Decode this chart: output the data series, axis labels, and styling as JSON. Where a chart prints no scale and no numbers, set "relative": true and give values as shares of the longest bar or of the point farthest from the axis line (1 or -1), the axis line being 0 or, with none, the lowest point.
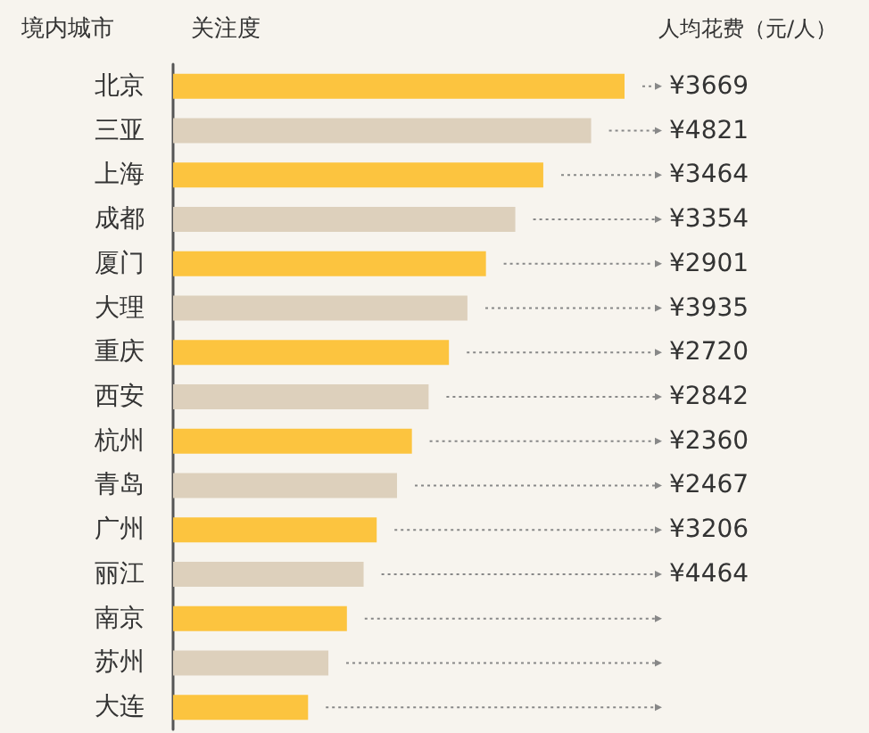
{
  "chart_data": {
    "type": "bar",
    "orientation": "horizontal",
    "relative": true,
    "ylabel": "境内城市",
    "xlabel": "关注度",
    "categories": [
      "北京",
      "三亚",
      "上海",
      "成都",
      "厦门",
      "大理",
      "重庆",
      "西安",
      "杭州",
      "青岛",
      "广州",
      "丽江",
      "南京",
      "苏州",
      "大连"
    ],
    "values": [
      1,
      0.926,
      0.82,
      0.758,
      0.693,
      0.652,
      0.611,
      0.566,
      0.529,
      0.496,
      0.451,
      0.422,
      0.385,
      0.344,
      0.299
    ],
    "colors": [
      "#fcc43f",
      "#ddd0bc",
      "#fcc43f",
      "#ddd0bc",
      "#fcc43f",
      "#ddd0bc",
      "#fcc43f",
      "#ddd0bc",
      "#fcc43f",
      "#ddd0bc",
      "#fcc43f",
      "#ddd0bc",
      "#fcc43f",
      "#ddd0bc",
      "#fcc43f"
    ],
    "annotations": [
      "人均花费（元/人）",
      "¥3669",
      "¥4821",
      "¥3464",
      "¥3354",
      "¥2901",
      "¥3935",
      "¥2720",
      "¥2842",
      "¥2360",
      "¥2467",
      "¥3206",
      "¥4464"
    ]
  }
}
